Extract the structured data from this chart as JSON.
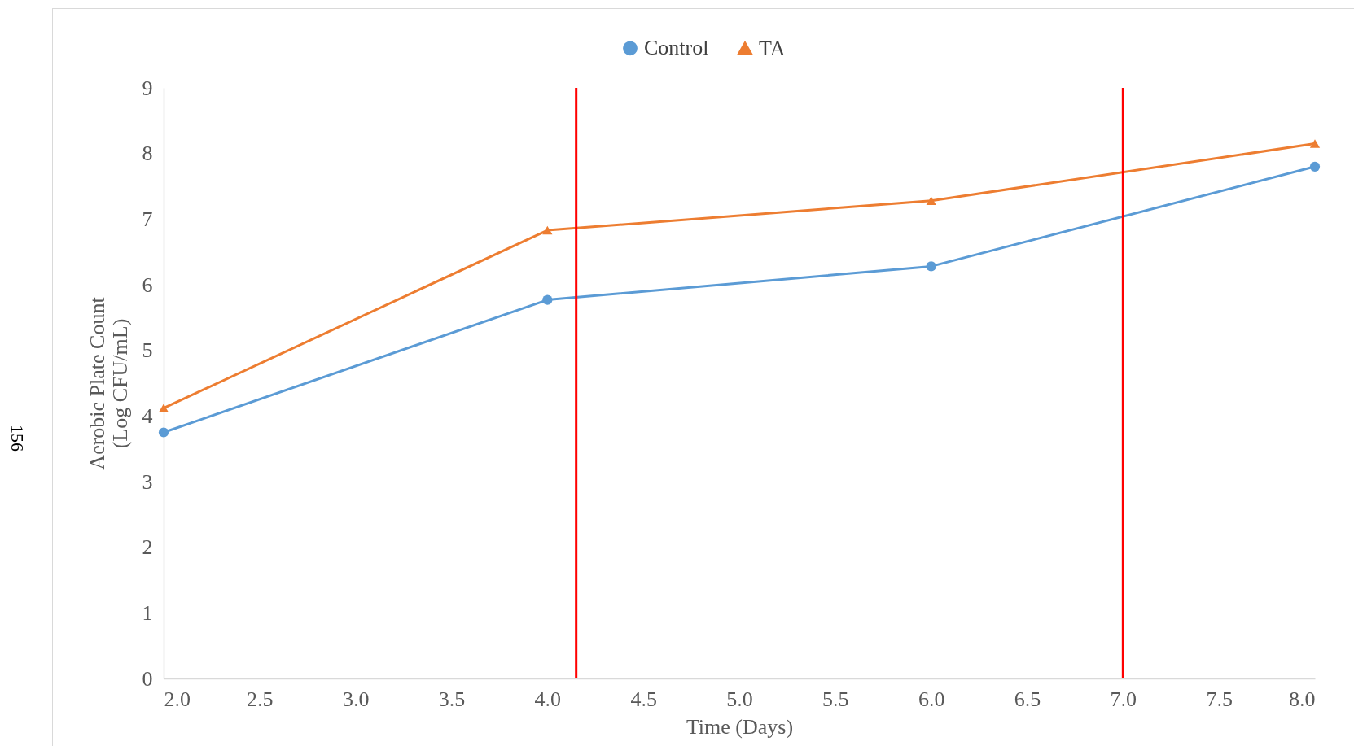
{
  "chart_data": {
    "type": "line",
    "xlabel": "Time (Days)",
    "ylabel": "Aerobic Plate Count\n(Log CFU/mL)",
    "x": [
      2,
      4,
      6,
      8
    ],
    "series": [
      {
        "name": "Control",
        "color": "#5b9bd5",
        "marker": "circle",
        "values": [
          3.75,
          5.77,
          6.28,
          7.8
        ]
      },
      {
        "name": "TA",
        "color": "#ed7d31",
        "marker": "triangle",
        "values": [
          4.12,
          6.83,
          7.28,
          8.15
        ]
      }
    ],
    "xlim": [
      2,
      8
    ],
    "xticks": [
      {
        "value": 2,
        "label": "2.0"
      },
      {
        "value": 2.5,
        "label": "2.5"
      },
      {
        "value": 3,
        "label": "3.0"
      },
      {
        "value": 3.5,
        "label": "3.5"
      },
      {
        "value": 4,
        "label": "4.0"
      },
      {
        "value": 4.5,
        "label": "4.5"
      },
      {
        "value": 5,
        "label": "5.0"
      },
      {
        "value": 5.5,
        "label": "5.5"
      },
      {
        "value": 6,
        "label": "6.0"
      },
      {
        "value": 6.5,
        "label": "6.5"
      },
      {
        "value": 7,
        "label": "7.0"
      },
      {
        "value": 7.5,
        "label": "7.5"
      },
      {
        "value": 8,
        "label": "8.0"
      }
    ],
    "ylim": [
      0,
      9
    ],
    "yticks": [
      0,
      1,
      2,
      3,
      4,
      5,
      6,
      7,
      8,
      9
    ],
    "ref_lines": [
      {
        "axis": "x",
        "value": 4.15,
        "color": "#ff0000"
      },
      {
        "axis": "x",
        "value": 7.0,
        "color": "#ff0000"
      }
    ],
    "annotations": [
      "156"
    ],
    "grid": false,
    "legend": "top",
    "line_style": "solid"
  }
}
